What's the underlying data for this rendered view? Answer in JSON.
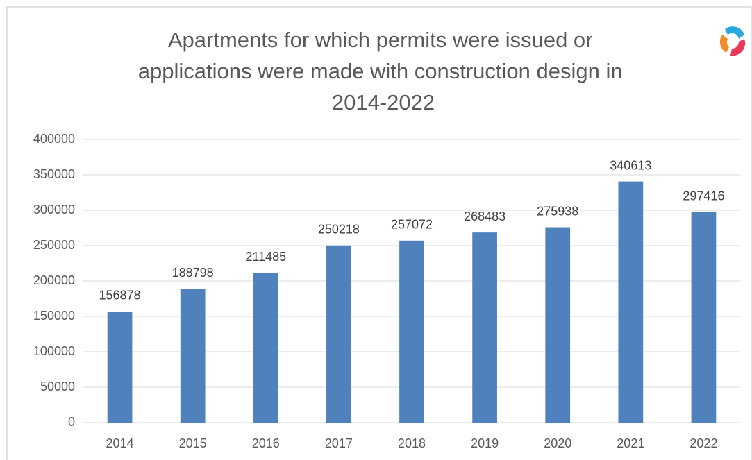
{
  "chart_data": {
    "type": "bar",
    "title": [
      "Apartments for which permits were issued or",
      "applications were made with construction design in",
      "2014-2022"
    ],
    "categories": [
      "2014",
      "2015",
      "2016",
      "2017",
      "2018",
      "2019",
      "2020",
      "2021",
      "2022"
    ],
    "values": [
      156878,
      188798,
      211485,
      250218,
      257072,
      268483,
      275938,
      340613,
      297416
    ],
    "color": "#4f81bd",
    "ylim": [
      0,
      400000
    ],
    "yticks": [
      0,
      50000,
      100000,
      150000,
      200000,
      250000,
      300000,
      350000,
      400000
    ],
    "grid": true
  }
}
